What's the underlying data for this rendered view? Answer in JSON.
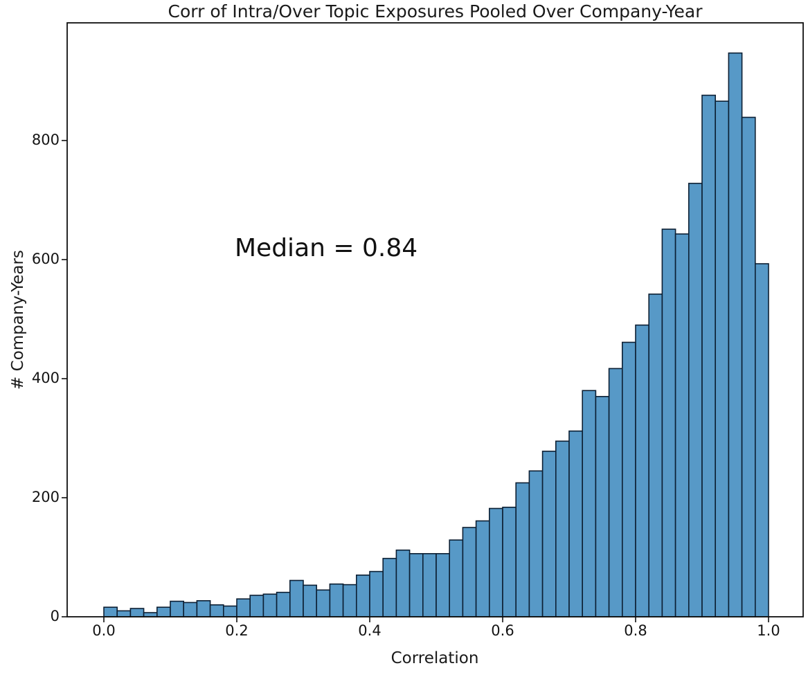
{
  "figure": {
    "title": "Corr of Intra/Over Topic Exposures Pooled Over Company-Year",
    "colors": {
      "bar_fill": "#5799c7",
      "bar_edge": "#0c1f33",
      "axis": "#0f0f0f",
      "text": "#141414",
      "background": "#ffffff"
    }
  },
  "chart_data": {
    "type": "bar",
    "subtype": "histogram",
    "title": "Corr of Intra/Over Topic Exposures Pooled Over Company-Year",
    "xlabel": "Correlation",
    "ylabel": "# Company-Years",
    "bin_start": 0.0,
    "bin_width": 0.02,
    "n_bins": 50,
    "values": [
      16,
      10,
      14,
      7,
      16,
      26,
      24,
      27,
      20,
      18,
      30,
      36,
      38,
      41,
      61,
      53,
      45,
      55,
      54,
      70,
      76,
      98,
      112,
      106,
      106,
      106,
      129,
      150,
      161,
      182,
      184,
      225,
      245,
      278,
      295,
      312,
      380,
      370,
      417,
      461,
      490,
      542,
      651,
      643,
      728,
      876,
      866,
      947,
      839,
      593
    ],
    "x_ticks": [
      {
        "value": 0.0,
        "label": "0.0"
      },
      {
        "value": 0.2,
        "label": "0.2"
      },
      {
        "value": 0.4,
        "label": "0.4"
      },
      {
        "value": 0.6,
        "label": "0.6"
      },
      {
        "value": 0.8,
        "label": "0.8"
      },
      {
        "value": 1.0,
        "label": "1.0"
      }
    ],
    "y_ticks": [
      {
        "value": 0,
        "label": "0"
      },
      {
        "value": 200,
        "label": "200"
      },
      {
        "value": 400,
        "label": "400"
      },
      {
        "value": 600,
        "label": "600"
      },
      {
        "value": 800,
        "label": "800"
      }
    ],
    "xlim": [
      -0.055,
      1.052
    ],
    "ylim": [
      0,
      997
    ],
    "grid": false,
    "legend": null,
    "annotation": {
      "text": "Median = 0.84",
      "x": 0.198,
      "y": 602
    }
  }
}
